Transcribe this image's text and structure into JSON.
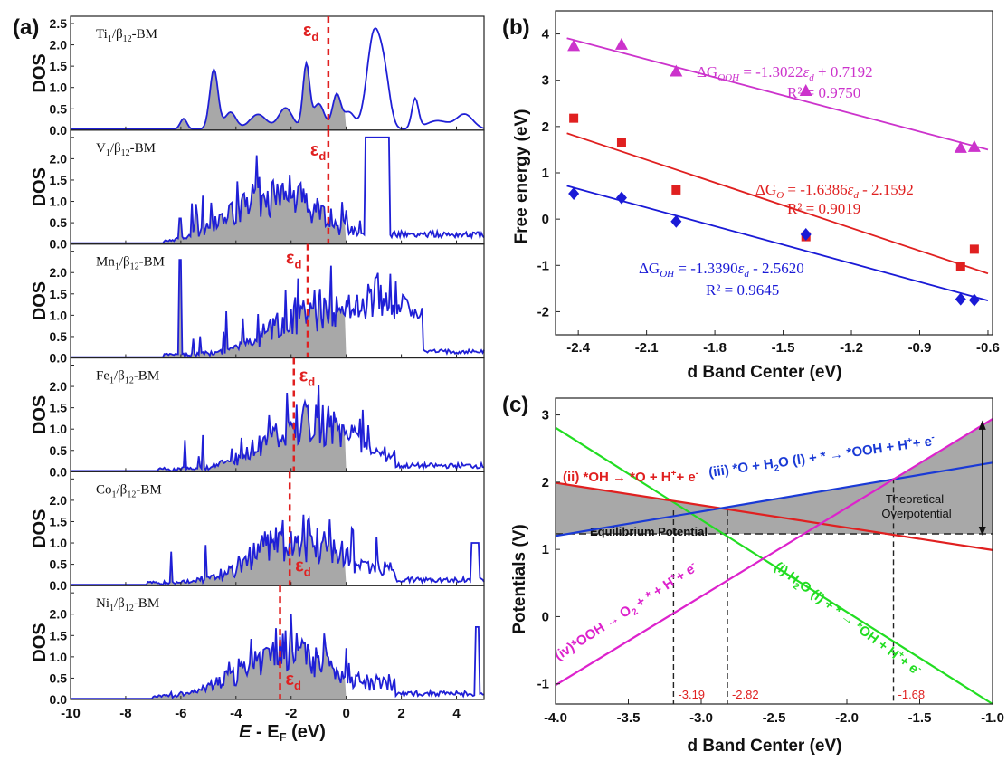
{
  "panels": {
    "a": {
      "label": "(a)",
      "ylabel": "DOS",
      "xlabel_main": "E",
      "xlabel_minus": " - E",
      "xlabel_sub": "F",
      "xlabel_unit": " (eV)",
      "xticks": [
        "-10",
        "-8",
        "-6",
        "-4",
        "-2",
        "0",
        "2",
        "4"
      ],
      "yticks": [
        "0.0",
        "0.5",
        "1.0",
        "1.5",
        "2.0",
        "2.5"
      ],
      "ed_label": "ε",
      "ed_sub": "d"
    },
    "b": {
      "label": "(b)",
      "xlabel": "d Band Center (eV)",
      "ylabel": "Free energy (eV)",
      "xticks": [
        "-2.4",
        "-2.1",
        "-1.8",
        "-1.5",
        "-1.2",
        "-0.9",
        "-0.6"
      ],
      "yticks": [
        "-2",
        "-1",
        "0",
        "1",
        "2",
        "3",
        "4"
      ]
    },
    "c": {
      "label": "(c)",
      "xlabel": "d Band Center (eV)",
      "ylabel": "Potentials (V)",
      "xticks": [
        "-4.0",
        "-3.5",
        "-3.0",
        "-2.5",
        "-2.0",
        "-1.5",
        "-1.0"
      ],
      "yticks": [
        "-1",
        "0",
        "1",
        "2",
        "3"
      ]
    }
  },
  "chart_data": [
    {
      "type": "area",
      "panel": "a",
      "xlim": [
        -10,
        5
      ],
      "ylim": [
        0,
        2.5
      ],
      "stack_labels": [
        {
          "metal": "Ti",
          "ed": -0.65,
          "line_color": "#1f1fd6",
          "fill_color": "#a8a8a8"
        },
        {
          "metal": "V",
          "ed": -0.65,
          "line_color": "#1f1fd6",
          "fill_color": "#a8a8a8"
        },
        {
          "metal": "Mn",
          "ed": -1.4,
          "line_color": "#1f1fd6",
          "fill_color": "#a8a8a8"
        },
        {
          "metal": "Fe",
          "ed": -1.9,
          "line_color": "#1f1fd6",
          "fill_color": "#a8a8a8"
        },
        {
          "metal": "Co",
          "ed": -2.05,
          "line_color": "#1f1fd6",
          "fill_color": "#a8a8a8"
        },
        {
          "metal": "Ni",
          "ed": -2.4,
          "line_color": "#1f1fd6",
          "fill_color": "#a8a8a8"
        }
      ],
      "label_suffix": "/β",
      "label_sub1": "1",
      "label_sub2": "12",
      "label_tail": "-BM",
      "fermi_level": 0
    },
    {
      "type": "scatter",
      "panel": "b",
      "xlim": [
        -2.5,
        -0.58
      ],
      "ylim": [
        -2.5,
        4.5
      ],
      "series": [
        {
          "name": "ΔG_OOH",
          "color": "#cc33cc",
          "marker": "triangle",
          "x": [
            -2.42,
            -2.21,
            -1.97,
            -1.4,
            -0.72,
            -0.66
          ],
          "y": [
            3.75,
            3.78,
            3.2,
            2.78,
            1.55,
            1.57
          ],
          "fit": {
            "slope": -1.3022,
            "intercept": 0.7192
          }
        },
        {
          "name": "ΔG_O",
          "color": "#e02020",
          "marker": "square",
          "x": [
            -2.42,
            -2.21,
            -1.97,
            -1.4,
            -0.72,
            -0.66
          ],
          "y": [
            2.18,
            1.66,
            0.63,
            -0.38,
            -1.02,
            -0.65
          ],
          "fit": {
            "slope": -1.6386,
            "intercept": -2.1592
          }
        },
        {
          "name": "ΔG_OH",
          "color": "#1a1ad6",
          "marker": "diamond",
          "x": [
            -2.42,
            -2.21,
            -1.97,
            -1.4,
            -0.72,
            -0.66
          ],
          "y": [
            0.55,
            0.46,
            -0.05,
            -0.33,
            -1.73,
            -1.75
          ],
          "fit": {
            "slope": -1.339,
            "intercept": -2.562
          }
        }
      ],
      "equations": [
        {
          "main": "ΔG",
          "sub": "OOH",
          "rest": " = -1.3022",
          "var": "ε",
          "var_sub": "d",
          "tail": " + 0.7192",
          "r2": "R² = 0.9750"
        },
        {
          "main": "ΔG",
          "sub": "O",
          "rest": " = -1.6386",
          "var": "ε",
          "var_sub": "d",
          "tail": " - 2.1592",
          "r2": "R² = 0.9019"
        },
        {
          "main": "ΔG",
          "sub": "OH",
          "rest": " = -1.3390",
          "var": "ε",
          "var_sub": "d",
          "tail": " - 2.5620",
          "r2": "R² = 0.9645"
        }
      ]
    },
    {
      "type": "line",
      "panel": "c",
      "xlim": [
        -4.0,
        -1.0
      ],
      "ylim": [
        -1.3,
        3.25
      ],
      "equilibrium": 1.23,
      "series": [
        {
          "name": "(i)",
          "color": "#22dd22",
          "x": [
            -4.0,
            -1.0
          ],
          "y": [
            2.81,
            -1.3
          ]
        },
        {
          "name": "(ii)",
          "color": "#e02020",
          "x": [
            -4.0,
            -1.0
          ],
          "y": [
            1.99,
            0.99
          ]
        },
        {
          "name": "(iii)",
          "color": "#1a3ad6",
          "x": [
            -4.0,
            -1.0
          ],
          "y": [
            1.2,
            2.29
          ]
        },
        {
          "name": "(iv)",
          "color": "#dd22cc",
          "x": [
            -4.0,
            -1.0
          ],
          "y": [
            -1.02,
            2.94
          ]
        }
      ],
      "vlines": [
        -3.19,
        -2.82,
        -1.68
      ],
      "vline_labels": [
        "-3.19",
        "-2.82",
        "-1.68"
      ],
      "labels": {
        "equilibrium": "Equilibrium Potential",
        "overpotential_1": "Theoretical",
        "overpotential_2": "Overpotential",
        "r1": "(i) H",
        "r1b": "O (l) + * → *OH + H",
        "r1c": "+ e",
        "r2": "(ii) *OH → *O + H",
        "r2b": "+ e",
        "r3": "(iii) *O + H",
        "r3b": "O (l) + * → *OOH + H",
        "r3c": "+ e",
        "r4": "(iv)*OOH → O",
        "r4b": " + * + H",
        "r4c": "+ e",
        "sub2": "2",
        "plus": "+",
        "minus": "-"
      }
    }
  ]
}
